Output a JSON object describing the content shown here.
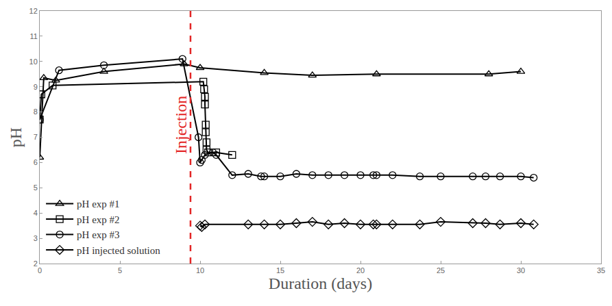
{
  "chart_data": {
    "type": "line",
    "x_label": "Duration (days)",
    "y_label": "pH",
    "xlim": [
      0,
      35
    ],
    "xticks": [
      0,
      5,
      10,
      15,
      20,
      25,
      30,
      35
    ],
    "ylim": [
      2,
      12
    ],
    "yticks": [
      2,
      3,
      4,
      5,
      6,
      7,
      8,
      9,
      10,
      11,
      12
    ],
    "grid": false,
    "legend": "lower left",
    "annotations": [
      {
        "text": "Injection",
        "x": 9.4,
        "y": 7.5,
        "color": "#e32626",
        "line_style": "dashed"
      }
    ],
    "series": [
      {
        "name": "pH exp #1",
        "color": "#000000",
        "marker": "triangle",
        "x": [
          0,
          0.25,
          1,
          4,
          9,
          10,
          14,
          17,
          21,
          28,
          30
        ],
        "values": [
          6.2,
          9.35,
          9.25,
          9.6,
          9.9,
          9.75,
          9.55,
          9.45,
          9.5,
          9.5,
          9.6
        ]
      },
      {
        "name": "pH exp #2",
        "color": "#000000",
        "marker": "square",
        "x": [
          0,
          0.1,
          0.8,
          10.2,
          10.25,
          10.3,
          10.3,
          10.35,
          10.35,
          10.4,
          10.4,
          10.5,
          11,
          12
        ],
        "values": [
          7.7,
          8.7,
          9.05,
          9.2,
          8.9,
          8.6,
          8.3,
          7.5,
          7.2,
          6.8,
          6.5,
          6.4,
          6.4,
          6.3
        ]
      },
      {
        "name": "pH exp #3",
        "color": "#000000",
        "marker": "circle",
        "x": [
          0,
          1.2,
          4,
          8.9,
          9.9,
          10,
          10.1,
          10.3,
          10.8,
          11,
          12,
          13,
          13.8,
          14,
          15,
          16,
          17,
          18,
          19,
          20,
          20.8,
          21,
          22,
          23.7,
          25,
          27,
          27.8,
          28.7,
          30,
          30.8
        ],
        "values": [
          7.7,
          9.65,
          9.85,
          10.1,
          7.0,
          6.0,
          6.1,
          6.3,
          6.4,
          6.3,
          5.5,
          5.55,
          5.45,
          5.45,
          5.45,
          5.55,
          5.5,
          5.5,
          5.5,
          5.5,
          5.5,
          5.5,
          5.5,
          5.45,
          5.45,
          5.45,
          5.45,
          5.45,
          5.45,
          5.4
        ]
      },
      {
        "name": "pH injected solution",
        "color": "#000000",
        "marker": "diamond",
        "x": [
          10,
          10.1,
          10.3,
          13,
          14,
          15,
          16,
          17,
          18,
          19,
          20,
          20.8,
          21,
          22,
          23.7,
          25,
          27,
          27.8,
          28.7,
          30,
          30.8
        ],
        "values": [
          3.5,
          3.45,
          3.55,
          3.55,
          3.55,
          3.55,
          3.6,
          3.65,
          3.55,
          3.6,
          3.55,
          3.55,
          3.55,
          3.55,
          3.55,
          3.65,
          3.6,
          3.6,
          3.55,
          3.6,
          3.55
        ]
      }
    ]
  }
}
